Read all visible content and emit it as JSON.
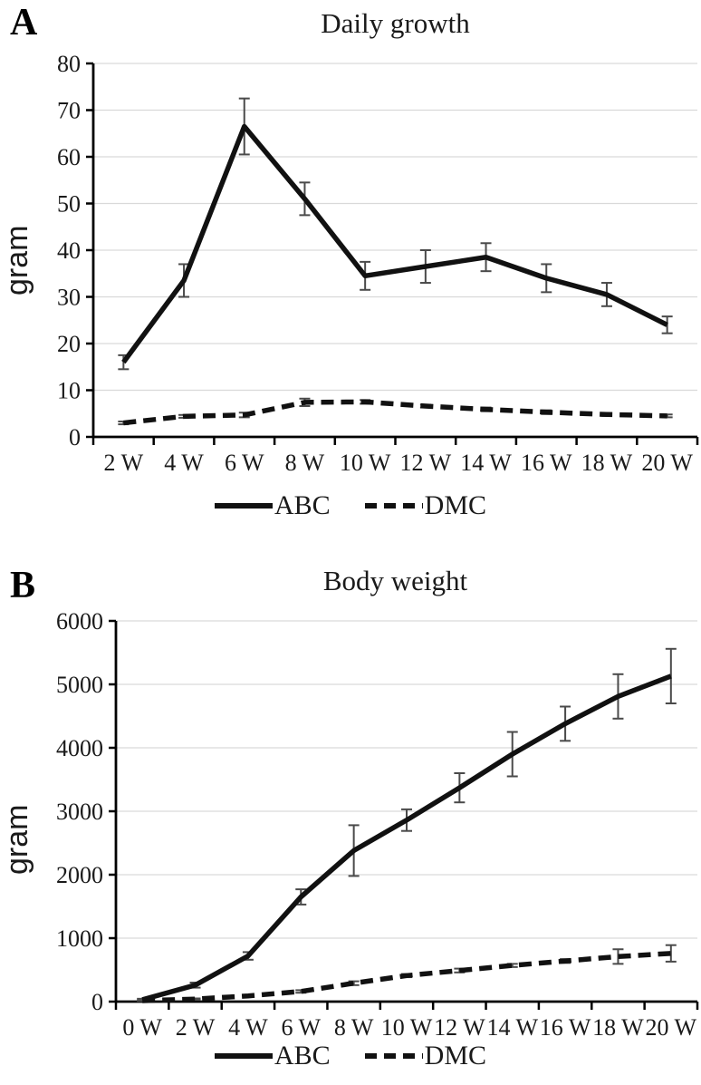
{
  "colors": {
    "series_line": "#111111",
    "error_bar": "#4a4a4a",
    "gridline": "#d9d9d9",
    "axis": "#000000",
    "text": "#1a1a1a",
    "background": "#ffffff"
  },
  "chart_data": [
    {
      "type": "line",
      "panel_label": "A",
      "title": "Daily growth",
      "ylabel": "gram",
      "categories": [
        "2 W",
        "4 W",
        "6 W",
        "8 W",
        "10 W",
        "12 W",
        "14 W",
        "16 W",
        "18 W",
        "20 W"
      ],
      "ylim": [
        0,
        80
      ],
      "ytick_step": 10,
      "grid": true,
      "legend_position": "bottom",
      "series": [
        {
          "name": "ABC",
          "style": "solid",
          "values": [
            16,
            33.5,
            66.5,
            51,
            34.5,
            36.5,
            38.5,
            34,
            30.5,
            24
          ],
          "errors": [
            1.5,
            3.5,
            6,
            3.5,
            3,
            3.5,
            3,
            3,
            2.5,
            1.8
          ]
        },
        {
          "name": "DMC",
          "style": "dashed",
          "values": [
            3,
            4.4,
            4.7,
            7.4,
            7.5,
            6.6,
            5.9,
            5.3,
            4.8,
            4.5
          ],
          "errors": [
            0.3,
            0.3,
            0.5,
            0.8,
            0.4,
            0.3,
            0.4,
            0.4,
            0.3,
            0.3
          ]
        }
      ]
    },
    {
      "type": "line",
      "panel_label": "B",
      "title": "Body weight",
      "ylabel": "gram",
      "categories": [
        "0 W",
        "2 W",
        "4 W",
        "6 W",
        "8 W",
        "10 W",
        "12 W",
        "14 W",
        "16 W",
        "18 W",
        "20 W"
      ],
      "ylim": [
        0,
        6000
      ],
      "ytick_step": 1000,
      "grid": true,
      "legend_position": "bottom",
      "series": [
        {
          "name": "ABC",
          "style": "solid",
          "values": [
            30,
            260,
            720,
            1650,
            2380,
            2860,
            3370,
            3900,
            4380,
            4810,
            5130
          ],
          "errors": [
            15,
            40,
            60,
            120,
            400,
            170,
            230,
            350,
            270,
            350,
            430
          ]
        },
        {
          "name": "DMC",
          "style": "dashed",
          "values": [
            15,
            40,
            90,
            160,
            290,
            410,
            490,
            570,
            640,
            710,
            760
          ],
          "errors": [
            5,
            10,
            15,
            20,
            30,
            25,
            30,
            25,
            30,
            115,
            130
          ]
        }
      ]
    }
  ]
}
